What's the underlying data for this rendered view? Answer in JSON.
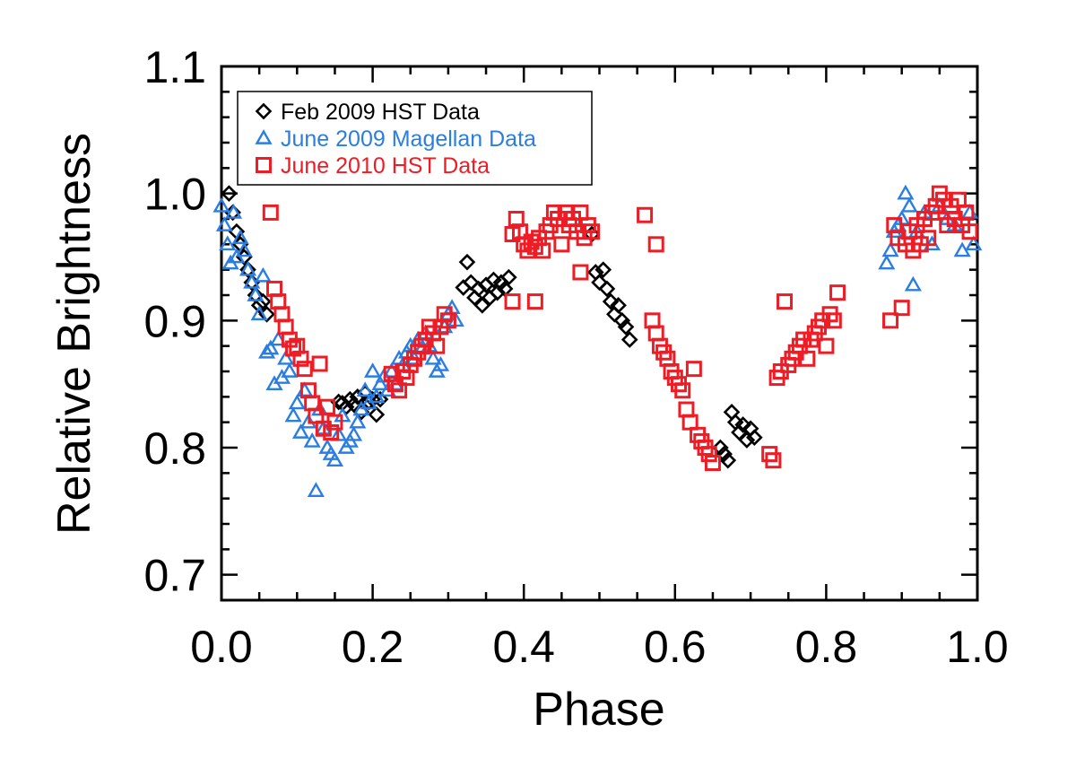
{
  "chart_data": {
    "type": "scatter",
    "title": "",
    "xlabel": "Phase",
    "ylabel": "Relative Brightness",
    "xlim": [
      0.0,
      1.0
    ],
    "ylim": [
      0.68,
      1.1
    ],
    "x_ticks": [
      0.0,
      0.2,
      0.4,
      0.6,
      0.8,
      1.0
    ],
    "x_tick_labels": [
      "0.0",
      "0.2",
      "0.4",
      "0.6",
      "0.8",
      "1.0"
    ],
    "y_ticks": [
      0.7,
      0.8,
      0.9,
      1.0,
      1.1
    ],
    "y_tick_labels": [
      "0.7",
      "0.8",
      "0.9",
      "1.0",
      "1.1"
    ],
    "x_minor_step": 0.05,
    "y_minor_step": 0.02,
    "grid": false,
    "legend_position": "top-left",
    "series": [
      {
        "name": "Feb 2009 HST Data",
        "marker": "diamond",
        "color": "#000000",
        "points": [
          [
            0.01,
            1.0
          ],
          [
            0.015,
            0.985
          ],
          [
            0.02,
            0.97
          ],
          [
            0.025,
            0.96
          ],
          [
            0.03,
            0.95
          ],
          [
            0.035,
            0.94
          ],
          [
            0.04,
            0.93
          ],
          [
            0.045,
            0.92
          ],
          [
            0.05,
            0.912
          ],
          [
            0.055,
            0.915
          ],
          [
            0.06,
            0.905
          ],
          [
            0.155,
            0.836
          ],
          [
            0.16,
            0.835
          ],
          [
            0.165,
            0.832
          ],
          [
            0.17,
            0.838
          ],
          [
            0.175,
            0.834
          ],
          [
            0.18,
            0.84
          ],
          [
            0.185,
            0.828
          ],
          [
            0.19,
            0.843
          ],
          [
            0.195,
            0.836
          ],
          [
            0.2,
            0.838
          ],
          [
            0.205,
            0.826
          ],
          [
            0.21,
            0.838
          ],
          [
            0.32,
            0.926
          ],
          [
            0.325,
            0.946
          ],
          [
            0.33,
            0.93
          ],
          [
            0.335,
            0.918
          ],
          [
            0.34,
            0.925
          ],
          [
            0.345,
            0.912
          ],
          [
            0.35,
            0.928
          ],
          [
            0.355,
            0.918
          ],
          [
            0.36,
            0.932
          ],
          [
            0.365,
            0.922
          ],
          [
            0.37,
            0.93
          ],
          [
            0.375,
            0.925
          ],
          [
            0.38,
            0.934
          ],
          [
            0.49,
            0.968
          ],
          [
            0.495,
            0.938
          ],
          [
            0.5,
            0.93
          ],
          [
            0.505,
            0.94
          ],
          [
            0.51,
            0.925
          ],
          [
            0.515,
            0.915
          ],
          [
            0.52,
            0.905
          ],
          [
            0.525,
            0.912
          ],
          [
            0.53,
            0.9
          ],
          [
            0.535,
            0.895
          ],
          [
            0.54,
            0.885
          ],
          [
            0.66,
            0.8
          ],
          [
            0.665,
            0.795
          ],
          [
            0.67,
            0.79
          ],
          [
            0.675,
            0.828
          ],
          [
            0.68,
            0.82
          ],
          [
            0.685,
            0.812
          ],
          [
            0.69,
            0.818
          ],
          [
            0.695,
            0.806
          ],
          [
            0.7,
            0.815
          ],
          [
            0.705,
            0.808
          ]
        ]
      },
      {
        "name": "June 2009 Magellan Data",
        "marker": "triangle",
        "color": "#2a7de1",
        "points": [
          [
            0.0,
            0.99
          ],
          [
            0.004,
            0.975
          ],
          [
            0.008,
            0.96
          ],
          [
            0.012,
            0.945
          ],
          [
            0.016,
            0.985
          ],
          [
            0.02,
            0.95
          ],
          [
            0.025,
            0.965
          ],
          [
            0.03,
            0.955
          ],
          [
            0.035,
            0.94
          ],
          [
            0.04,
            0.93
          ],
          [
            0.045,
            0.92
          ],
          [
            0.05,
            0.905
          ],
          [
            0.055,
            0.935
          ],
          [
            0.06,
            0.875
          ],
          [
            0.065,
            0.878
          ],
          [
            0.07,
            0.85
          ],
          [
            0.075,
            0.885
          ],
          [
            0.08,
            0.855
          ],
          [
            0.085,
            0.87
          ],
          [
            0.09,
            0.86
          ],
          [
            0.095,
            0.825
          ],
          [
            0.1,
            0.835
          ],
          [
            0.105,
            0.812
          ],
          [
            0.11,
            0.845
          ],
          [
            0.115,
            0.82
          ],
          [
            0.12,
            0.805
          ],
          [
            0.125,
            0.766
          ],
          [
            0.13,
            0.83
          ],
          [
            0.135,
            0.815
          ],
          [
            0.14,
            0.8
          ],
          [
            0.145,
            0.795
          ],
          [
            0.15,
            0.79
          ],
          [
            0.155,
            0.81
          ],
          [
            0.16,
            0.825
          ],
          [
            0.165,
            0.8
          ],
          [
            0.17,
            0.805
          ],
          [
            0.175,
            0.81
          ],
          [
            0.18,
            0.82
          ],
          [
            0.185,
            0.83
          ],
          [
            0.19,
            0.845
          ],
          [
            0.195,
            0.835
          ],
          [
            0.2,
            0.86
          ],
          [
            0.205,
            0.84
          ],
          [
            0.21,
            0.85
          ],
          [
            0.215,
            0.856
          ],
          [
            0.22,
            0.845
          ],
          [
            0.225,
            0.86
          ],
          [
            0.23,
            0.85
          ],
          [
            0.235,
            0.87
          ],
          [
            0.24,
            0.865
          ],
          [
            0.245,
            0.875
          ],
          [
            0.25,
            0.88
          ],
          [
            0.255,
            0.87
          ],
          [
            0.26,
            0.885
          ],
          [
            0.265,
            0.878
          ],
          [
            0.27,
            0.89
          ],
          [
            0.275,
            0.88
          ],
          [
            0.28,
            0.87
          ],
          [
            0.285,
            0.86
          ],
          [
            0.29,
            0.865
          ],
          [
            0.295,
            0.895
          ],
          [
            0.3,
            0.905
          ],
          [
            0.305,
            0.91
          ],
          [
            0.31,
            0.9
          ],
          [
            0.88,
            0.945
          ],
          [
            0.885,
            0.955
          ],
          [
            0.89,
            0.97
          ],
          [
            0.895,
            0.975
          ],
          [
            0.9,
            0.98
          ],
          [
            0.905,
            1.0
          ],
          [
            0.91,
            0.99
          ],
          [
            0.915,
            0.928
          ],
          [
            0.92,
            0.97
          ],
          [
            0.93,
            0.985
          ],
          [
            0.94,
            0.96
          ],
          [
            0.95,
            0.99
          ],
          [
            0.96,
            0.98
          ],
          [
            0.97,
            0.975
          ],
          [
            0.98,
            0.955
          ],
          [
            0.99,
            0.985
          ],
          [
            0.995,
            0.96
          ]
        ]
      },
      {
        "name": "June 2010 HST Data",
        "marker": "square",
        "color": "#ee1c25",
        "points": [
          [
            0.065,
            0.985
          ],
          [
            0.07,
            0.925
          ],
          [
            0.075,
            0.915
          ],
          [
            0.08,
            0.905
          ],
          [
            0.085,
            0.895
          ],
          [
            0.09,
            0.885
          ],
          [
            0.095,
            0.878
          ],
          [
            0.1,
            0.88
          ],
          [
            0.105,
            0.87
          ],
          [
            0.11,
            0.862
          ],
          [
            0.115,
            0.845
          ],
          [
            0.12,
            0.835
          ],
          [
            0.125,
            0.825
          ],
          [
            0.13,
            0.866
          ],
          [
            0.135,
            0.815
          ],
          [
            0.14,
            0.832
          ],
          [
            0.145,
            0.812
          ],
          [
            0.15,
            0.82
          ],
          [
            0.225,
            0.858
          ],
          [
            0.23,
            0.85
          ],
          [
            0.235,
            0.845
          ],
          [
            0.24,
            0.86
          ],
          [
            0.245,
            0.855
          ],
          [
            0.25,
            0.865
          ],
          [
            0.255,
            0.87
          ],
          [
            0.26,
            0.875
          ],
          [
            0.265,
            0.88
          ],
          [
            0.27,
            0.885
          ],
          [
            0.275,
            0.895
          ],
          [
            0.28,
            0.89
          ],
          [
            0.285,
            0.88
          ],
          [
            0.29,
            0.895
          ],
          [
            0.295,
            0.905
          ],
          [
            0.3,
            0.9
          ],
          [
            0.385,
            0.968
          ],
          [
            0.39,
            0.98
          ],
          [
            0.395,
            0.97
          ],
          [
            0.4,
            0.96
          ],
          [
            0.405,
            0.955
          ],
          [
            0.41,
            0.962
          ],
          [
            0.415,
            0.958
          ],
          [
            0.42,
            0.965
          ],
          [
            0.425,
            0.955
          ],
          [
            0.43,
            0.97
          ],
          [
            0.435,
            0.975
          ],
          [
            0.44,
            0.985
          ],
          [
            0.445,
            0.98
          ],
          [
            0.45,
            0.96
          ],
          [
            0.455,
            0.985
          ],
          [
            0.46,
            0.975
          ],
          [
            0.465,
            0.98
          ],
          [
            0.47,
            0.97
          ],
          [
            0.475,
            0.985
          ],
          [
            0.48,
            0.965
          ],
          [
            0.485,
            0.975
          ],
          [
            0.49,
            0.97
          ],
          [
            0.385,
            0.915
          ],
          [
            0.415,
            0.915
          ],
          [
            0.475,
            0.938
          ],
          [
            0.56,
            0.983
          ],
          [
            0.575,
            0.96
          ],
          [
            0.57,
            0.9
          ],
          [
            0.575,
            0.89
          ],
          [
            0.58,
            0.88
          ],
          [
            0.585,
            0.875
          ],
          [
            0.59,
            0.87
          ],
          [
            0.595,
            0.86
          ],
          [
            0.6,
            0.855
          ],
          [
            0.605,
            0.85
          ],
          [
            0.61,
            0.845
          ],
          [
            0.615,
            0.83
          ],
          [
            0.62,
            0.82
          ],
          [
            0.625,
            0.862
          ],
          [
            0.63,
            0.81
          ],
          [
            0.635,
            0.805
          ],
          [
            0.64,
            0.8
          ],
          [
            0.645,
            0.795
          ],
          [
            0.65,
            0.788
          ],
          [
            0.725,
            0.795
          ],
          [
            0.73,
            0.79
          ],
          [
            0.735,
            0.855
          ],
          [
            0.74,
            0.86
          ],
          [
            0.745,
            0.915
          ],
          [
            0.75,
            0.865
          ],
          [
            0.755,
            0.87
          ],
          [
            0.76,
            0.875
          ],
          [
            0.765,
            0.88
          ],
          [
            0.77,
            0.885
          ],
          [
            0.775,
            0.87
          ],
          [
            0.78,
            0.885
          ],
          [
            0.785,
            0.89
          ],
          [
            0.79,
            0.895
          ],
          [
            0.795,
            0.9
          ],
          [
            0.8,
            0.88
          ],
          [
            0.805,
            0.905
          ],
          [
            0.81,
            0.9
          ],
          [
            0.815,
            0.922
          ],
          [
            0.885,
            0.9
          ],
          [
            0.89,
            0.975
          ],
          [
            0.895,
            0.965
          ],
          [
            0.9,
            0.91
          ],
          [
            0.905,
            0.96
          ],
          [
            0.91,
            0.97
          ],
          [
            0.915,
            0.955
          ],
          [
            0.92,
            0.975
          ],
          [
            0.925,
            0.96
          ],
          [
            0.93,
            0.98
          ],
          [
            0.935,
            0.965
          ],
          [
            0.94,
            0.985
          ],
          [
            0.945,
            0.99
          ],
          [
            0.95,
            1.0
          ],
          [
            0.955,
            0.995
          ],
          [
            0.96,
            0.975
          ],
          [
            0.965,
            0.99
          ],
          [
            0.97,
            0.98
          ],
          [
            0.975,
            0.995
          ],
          [
            0.98,
            0.975
          ],
          [
            0.985,
            0.985
          ],
          [
            0.99,
            0.97
          ]
        ]
      }
    ]
  }
}
